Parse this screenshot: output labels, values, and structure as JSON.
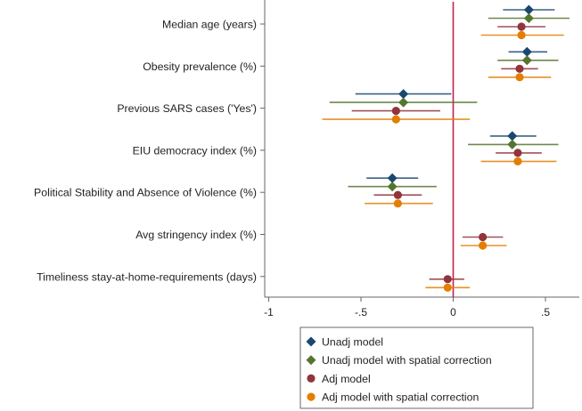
{
  "chart_data": {
    "type": "forest",
    "title": "",
    "xlabel": "",
    "ylabel": "",
    "xlim": [
      -1,
      0.67
    ],
    "x_ticks": [
      -1,
      -0.5,
      0,
      0.5
    ],
    "x_tick_labels": [
      "-1",
      "-.5",
      "0",
      ".5"
    ],
    "reference_line": 0,
    "grid": false,
    "legend_position": "bottom",
    "colors": {
      "zero_line": "#c8204a",
      "axis": "#555555"
    },
    "series": [
      {
        "name": "Unadj model",
        "marker": "diamond",
        "color": "#1a476f"
      },
      {
        "name": "Unadj model with spatial correction",
        "marker": "diamond",
        "color": "#55752f"
      },
      {
        "name": "Adj model",
        "marker": "circle",
        "color": "#90353b"
      },
      {
        "name": "Adj model with spatial correction",
        "marker": "circle",
        "color": "#e37e00"
      }
    ],
    "categories": [
      {
        "label": "Median age (years)",
        "estimates": [
          [
            0.41,
            0.27,
            0.55
          ],
          [
            0.41,
            0.19,
            0.63
          ],
          [
            0.37,
            0.24,
            0.5
          ],
          [
            0.37,
            0.15,
            0.6
          ]
        ]
      },
      {
        "label": "Obesity prevalence (%)",
        "estimates": [
          [
            0.4,
            0.3,
            0.51
          ],
          [
            0.4,
            0.24,
            0.57
          ],
          [
            0.36,
            0.26,
            0.46
          ],
          [
            0.36,
            0.19,
            0.53
          ]
        ]
      },
      {
        "label": "Previous SARS cases ('Yes')",
        "estimates": [
          [
            -0.27,
            -0.53,
            -0.01
          ],
          [
            -0.27,
            -0.67,
            0.13
          ],
          [
            -0.31,
            -0.55,
            -0.07
          ],
          [
            -0.31,
            -0.71,
            0.09
          ]
        ]
      },
      {
        "label": "EIU democracy index (%)",
        "estimates": [
          [
            0.32,
            0.2,
            0.45
          ],
          [
            0.32,
            0.08,
            0.57
          ],
          [
            0.35,
            0.23,
            0.48
          ],
          [
            0.35,
            0.15,
            0.56
          ]
        ]
      },
      {
        "label": "Political Stability and Absence of Violence (%)",
        "estimates": [
          [
            -0.33,
            -0.47,
            -0.19
          ],
          [
            -0.33,
            -0.57,
            -0.09
          ],
          [
            -0.3,
            -0.43,
            -0.17
          ],
          [
            -0.3,
            -0.48,
            -0.11
          ]
        ]
      },
      {
        "label": "Avg stringency index (%)",
        "estimates": [
          null,
          null,
          [
            0.16,
            0.05,
            0.27
          ],
          [
            0.16,
            0.04,
            0.29
          ]
        ]
      },
      {
        "label": "Timeliness stay-at-home-requirements (days)",
        "estimates": [
          null,
          null,
          [
            -0.03,
            -0.13,
            0.06
          ],
          [
            -0.03,
            -0.15,
            0.09
          ]
        ]
      }
    ]
  }
}
